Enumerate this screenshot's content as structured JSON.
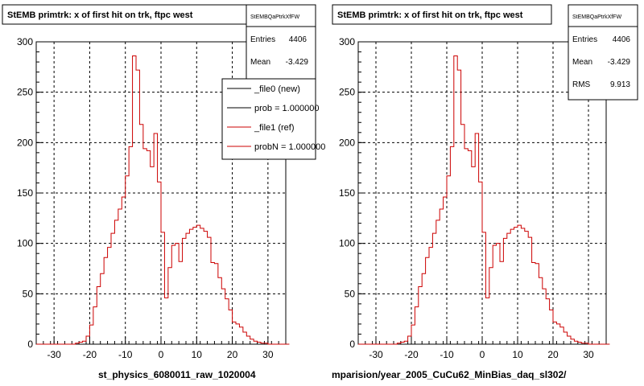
{
  "colors": {
    "background": "#ffffff",
    "ref_line": "#cc0000",
    "new_line": "#000000"
  },
  "left_panel": {
    "title": "StEMB primtrk: x of first hit on trk, ftpc west",
    "xlabel": "st_physics_6080011_raw_1020004",
    "stats": {
      "name": "StEMBQaPtrkXfFW",
      "entries_label": "Entries",
      "entries": "4406",
      "mean_label": "Mean",
      "mean": "-3.429"
    },
    "legend": [
      {
        "label": "_file0 (new)",
        "color": "#000000"
      },
      {
        "label": "prob = 1.000000",
        "color": "#000000"
      },
      {
        "label": "_file1 (ref)",
        "color": "#cc0000"
      },
      {
        "label": "probN = 1.000000",
        "color": "#cc0000"
      }
    ]
  },
  "right_panel": {
    "title": "StEMB primtrk: x of first hit on trk, ftpc west",
    "xlabel": "mparision/year_2005_CuCu62_MinBias_daq_sl302/",
    "stats": {
      "name": "StEMBQaPtrkXfFW",
      "entries_label": "Entries",
      "entries": "4406",
      "mean_label": "Mean",
      "mean": "-3.429",
      "rms_label": "RMS",
      "rms": "9.913"
    }
  },
  "chart_data": [
    {
      "type": "step",
      "xlim": [
        -35,
        35
      ],
      "ylim": [
        0,
        300
      ],
      "xticks": [
        -30,
        -20,
        -10,
        0,
        10,
        20,
        30
      ],
      "yticks": [
        0,
        50,
        100,
        150,
        200,
        250,
        300
      ],
      "grid": true,
      "bin_width": 1,
      "x_start": -30,
      "series": [
        {
          "name": "_file1 (ref)",
          "color": "#cc0000",
          "values": [
            0,
            0,
            0,
            0,
            0,
            0,
            1,
            2,
            3,
            8,
            19,
            37,
            57,
            70,
            86,
            96,
            110,
            123,
            134,
            146,
            167,
            196,
            286,
            272,
            218,
            194,
            192,
            176,
            209,
            161,
            111,
            46,
            76,
            98,
            100,
            82,
            105,
            110,
            114,
            116,
            118,
            115,
            112,
            106,
            81,
            80,
            66,
            55,
            45,
            34,
            22,
            20,
            17,
            12,
            8,
            5,
            3,
            2,
            1,
            1,
            0,
            0,
            0,
            0,
            0,
            0
          ]
        }
      ]
    },
    {
      "type": "step",
      "xlim": [
        -35,
        35
      ],
      "ylim": [
        0,
        300
      ],
      "xticks": [
        -30,
        -20,
        -10,
        0,
        10,
        20,
        30
      ],
      "yticks": [
        0,
        50,
        100,
        150,
        200,
        250,
        300
      ],
      "grid": true,
      "bin_width": 1,
      "x_start": -30,
      "series": [
        {
          "name": "_file1 (ref)",
          "color": "#cc0000",
          "values": [
            0,
            0,
            0,
            0,
            0,
            0,
            1,
            2,
            3,
            8,
            19,
            37,
            57,
            70,
            86,
            96,
            110,
            123,
            134,
            146,
            167,
            196,
            286,
            272,
            218,
            194,
            192,
            176,
            209,
            161,
            111,
            46,
            76,
            98,
            100,
            82,
            105,
            110,
            114,
            116,
            118,
            115,
            112,
            106,
            81,
            80,
            66,
            55,
            45,
            34,
            22,
            20,
            17,
            12,
            8,
            5,
            3,
            2,
            1,
            1,
            0,
            0,
            0,
            0,
            0,
            0
          ]
        }
      ]
    }
  ]
}
